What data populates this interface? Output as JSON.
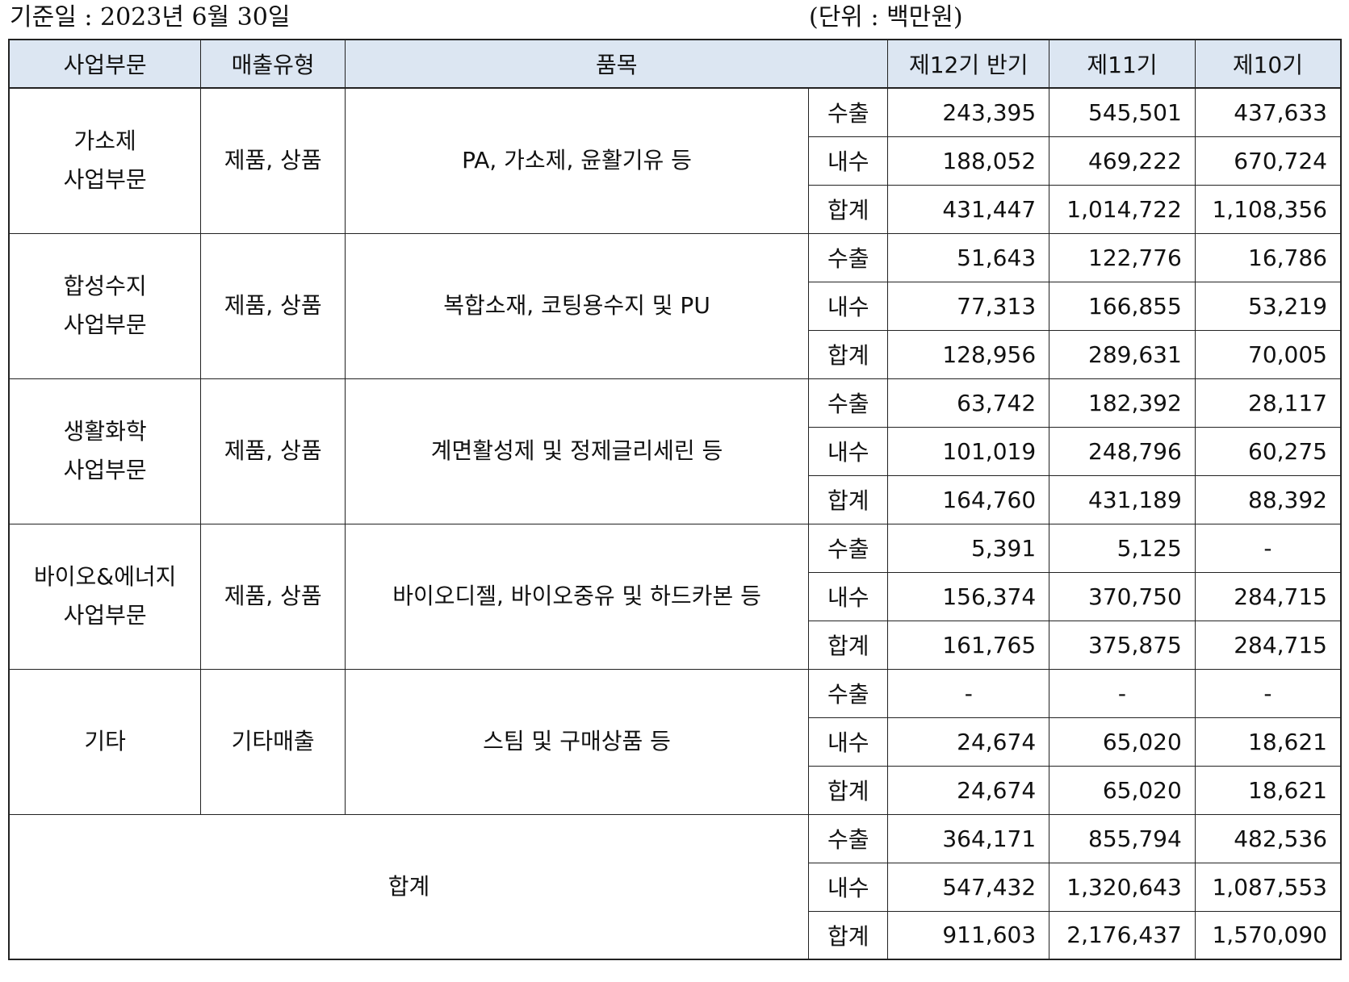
{
  "header": {
    "base_date": "기준일 : 2023년 6월 30일",
    "unit": "(단위 : 백만원)"
  },
  "table": {
    "columns": {
      "segment": "사업부문",
      "sales_type": "매출유형",
      "item": "품목",
      "period_12": "제12기 반기",
      "period_11": "제11기",
      "period_10": "제10기"
    },
    "groups": [
      {
        "segment_line1": "가소제",
        "segment_line2": "사업부문",
        "sales_type": "제품, 상품",
        "item": "PA, 가소제, 윤활기유 등",
        "rows": [
          {
            "kind": "수출",
            "p12": "243,395",
            "p11": "545,501",
            "p10": "437,633"
          },
          {
            "kind": "내수",
            "p12": "188,052",
            "p11": "469,222",
            "p10": "670,724"
          },
          {
            "kind": "합계",
            "p12": "431,447",
            "p11": "1,014,722",
            "p10": "1,108,356"
          }
        ]
      },
      {
        "segment_line1": "합성수지",
        "segment_line2": "사업부문",
        "sales_type": "제품, 상품",
        "item": "복합소재, 코팅용수지 및 PU",
        "rows": [
          {
            "kind": "수출",
            "p12": "51,643",
            "p11": "122,776",
            "p10": "16,786"
          },
          {
            "kind": "내수",
            "p12": "77,313",
            "p11": "166,855",
            "p10": "53,219"
          },
          {
            "kind": "합계",
            "p12": "128,956",
            "p11": "289,631",
            "p10": "70,005"
          }
        ]
      },
      {
        "segment_line1": "생활화학",
        "segment_line2": "사업부문",
        "sales_type": "제품, 상품",
        "item": "계면활성제 및 정제글리세린 등",
        "rows": [
          {
            "kind": "수출",
            "p12": "63,742",
            "p11": "182,392",
            "p10": "28,117"
          },
          {
            "kind": "내수",
            "p12": "101,019",
            "p11": "248,796",
            "p10": "60,275"
          },
          {
            "kind": "합계",
            "p12": "164,760",
            "p11": "431,189",
            "p10": "88,392"
          }
        ]
      },
      {
        "segment_line1": "바이오&에너지",
        "segment_line2": "사업부문",
        "sales_type": "제품, 상품",
        "item": "바이오디젤, 바이오중유 및 하드카본 등",
        "rows": [
          {
            "kind": "수출",
            "p12": "5,391",
            "p11": "5,125",
            "p10": "-"
          },
          {
            "kind": "내수",
            "p12": "156,374",
            "p11": "370,750",
            "p10": "284,715"
          },
          {
            "kind": "합계",
            "p12": "161,765",
            "p11": "375,875",
            "p10": "284,715"
          }
        ]
      },
      {
        "segment_line1": "기타",
        "segment_line2": "",
        "sales_type": "기타매출",
        "item": "스팀 및 구매상품 등",
        "rows": [
          {
            "kind": "수출",
            "p12": "-",
            "p11": "-",
            "p10": "-"
          },
          {
            "kind": "내수",
            "p12": "24,674",
            "p11": "65,020",
            "p10": "18,621"
          },
          {
            "kind": "합계",
            "p12": "24,674",
            "p11": "65,020",
            "p10": "18,621"
          }
        ]
      }
    ],
    "total": {
      "label": "합계",
      "rows": [
        {
          "kind": "수출",
          "p12": "364,171",
          "p11": "855,794",
          "p10": "482,536"
        },
        {
          "kind": "내수",
          "p12": "547,432",
          "p11": "1,320,643",
          "p10": "1,087,553"
        },
        {
          "kind": "합계",
          "p12": "911,603",
          "p11": "2,176,437",
          "p10": "1,570,090"
        }
      ]
    }
  }
}
